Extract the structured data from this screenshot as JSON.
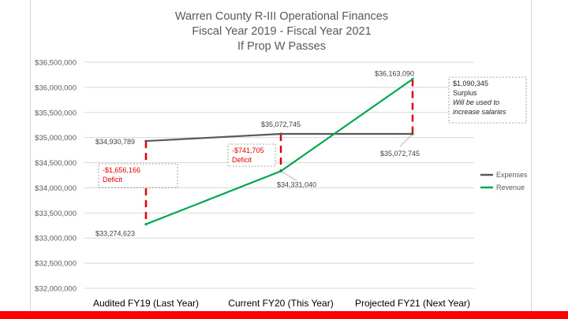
{
  "colors": {
    "expenses": "#595959",
    "revenue": "#00a651",
    "deficit": "#e00000",
    "bottom_bar": "#ff0000",
    "grid": "#d9d9d9"
  },
  "chart_data": {
    "type": "line",
    "title": [
      "Warren County R-III Operational Finances",
      "Fiscal Year 2019 - Fiscal Year 2021",
      "If Prop W Passes"
    ],
    "categories": [
      "Audited FY19 (Last Year)",
      "Current FY20 (This Year)",
      "Projected FY21 (Next Year)"
    ],
    "ylim": [
      32000000,
      36500000
    ],
    "yticks": [
      {
        "value": 36500000,
        "label": "$36,500,000"
      },
      {
        "value": 36000000,
        "label": "$36,000,000"
      },
      {
        "value": 35500000,
        "label": "$35,500,000"
      },
      {
        "value": 35000000,
        "label": "$35,000,000"
      },
      {
        "value": 34500000,
        "label": "$34,500,000"
      },
      {
        "value": 34000000,
        "label": "$34,000,000"
      },
      {
        "value": 33500000,
        "label": "$33,500,000"
      },
      {
        "value": 33000000,
        "label": "$33,000,000"
      },
      {
        "value": 32500000,
        "label": "$32,500,000"
      },
      {
        "value": 32000000,
        "label": "$32,000,000"
      }
    ],
    "grid": true,
    "legend_position": "right",
    "series": [
      {
        "name": "Expenses",
        "values": [
          34930789,
          35072745,
          35072745
        ],
        "labels": [
          "$34,930,789",
          "$35,072,745",
          "$35,072,745"
        ]
      },
      {
        "name": "Revenue",
        "values": [
          33274623,
          34331040,
          36163090
        ],
        "labels": [
          "$33,274,623",
          "$34,331,040",
          "$36,163,090"
        ]
      }
    ],
    "annotations": [
      {
        "lines": [
          "-$1,656,166",
          "Deficit"
        ],
        "from": 34930789,
        "to": 33274623,
        "category": 0
      },
      {
        "lines": [
          "-$741,705",
          "Deficit"
        ],
        "from": 35072745,
        "to": 34331040,
        "category": 1
      },
      {
        "lines": [
          "$1,090,345",
          "Surplus",
          "Will be used to",
          "increase salaries"
        ],
        "from": 36163090,
        "to": 35072745,
        "category": 2
      }
    ]
  }
}
